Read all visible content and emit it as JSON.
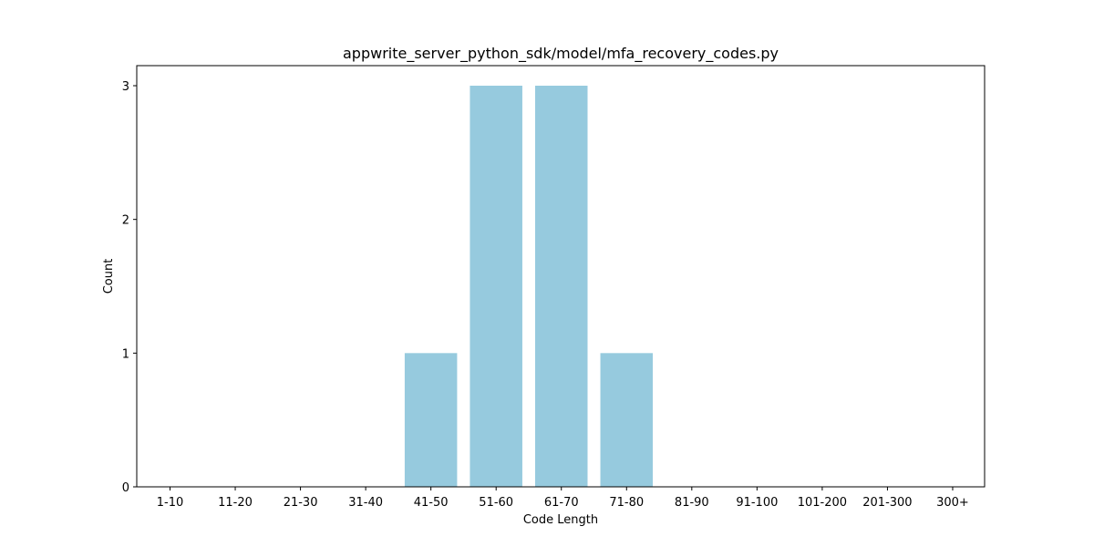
{
  "chart_data": {
    "type": "bar",
    "title": "appwrite_server_python_sdk/model/mfa_recovery_codes.py",
    "xlabel": "Code Length",
    "ylabel": "Count",
    "categories": [
      "1-10",
      "11-20",
      "21-30",
      "31-40",
      "41-50",
      "51-60",
      "61-70",
      "71-80",
      "81-90",
      "91-100",
      "101-200",
      "201-300",
      "300+"
    ],
    "values": [
      0,
      0,
      0,
      0,
      1,
      3,
      3,
      1,
      0,
      0,
      0,
      0,
      0
    ],
    "ylim": [
      0,
      3.15
    ],
    "yticks": [
      0,
      1,
      2,
      3
    ],
    "bar_color": "#96cade",
    "grid": false
  }
}
